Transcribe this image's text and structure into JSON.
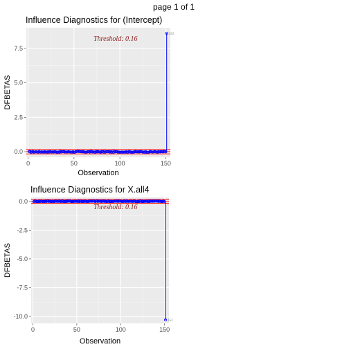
{
  "page": {
    "label": "page 1 of 1"
  },
  "chart_data": [
    {
      "type": "scatter",
      "title": "Influence Diagnostics for (Intercept)",
      "xlabel": "Observation",
      "ylabel": "DFBETAS",
      "xlim": [
        -2,
        155
      ],
      "ylim": [
        -0.4,
        9.0
      ],
      "xticks": [
        0,
        50,
        100,
        150
      ],
      "yticks": [
        0.0,
        2.5,
        5.0,
        7.5
      ],
      "ytick_labels": [
        "0.0",
        "2.5",
        "5.0",
        "7.5"
      ],
      "threshold": 0.16,
      "threshold_label": "Threshold: 0.16",
      "n": 151,
      "baseline": -0.01,
      "amplitude": 0.035,
      "outliers": [
        {
          "x": 151,
          "y": 8.6,
          "label": "151"
        }
      ],
      "grid": true,
      "legend": "none"
    },
    {
      "type": "scatter",
      "title": "Influence Diagnostics for X.all4",
      "xlabel": "Observation",
      "ylabel": "DFBETAS",
      "xlim": [
        -2,
        155
      ],
      "ylim": [
        -10.6,
        0.35
      ],
      "xticks": [
        0,
        50,
        100,
        150
      ],
      "yticks": [
        0.0,
        -2.5,
        -5.0,
        -7.5,
        -10.0
      ],
      "ytick_labels": [
        "0.0",
        "-2.5",
        "-5.0",
        "-7.5",
        "-10.0"
      ],
      "threshold": 0.16,
      "threshold_label": "Threshold: 0.16",
      "n": 151,
      "baseline": 0.01,
      "amplitude": 0.035,
      "outliers": [
        {
          "x": 151,
          "y": -10.3,
          "label": "151"
        }
      ],
      "grid": true,
      "legend": "none"
    }
  ],
  "colors": {
    "panel_bg": "#ebebeb",
    "grid_major": "#ffffff",
    "grid_minor": "#f5f5f5",
    "point": "#0000ff",
    "threshold_line": "#ff0000",
    "threshold_text": "#8b1a1a"
  }
}
